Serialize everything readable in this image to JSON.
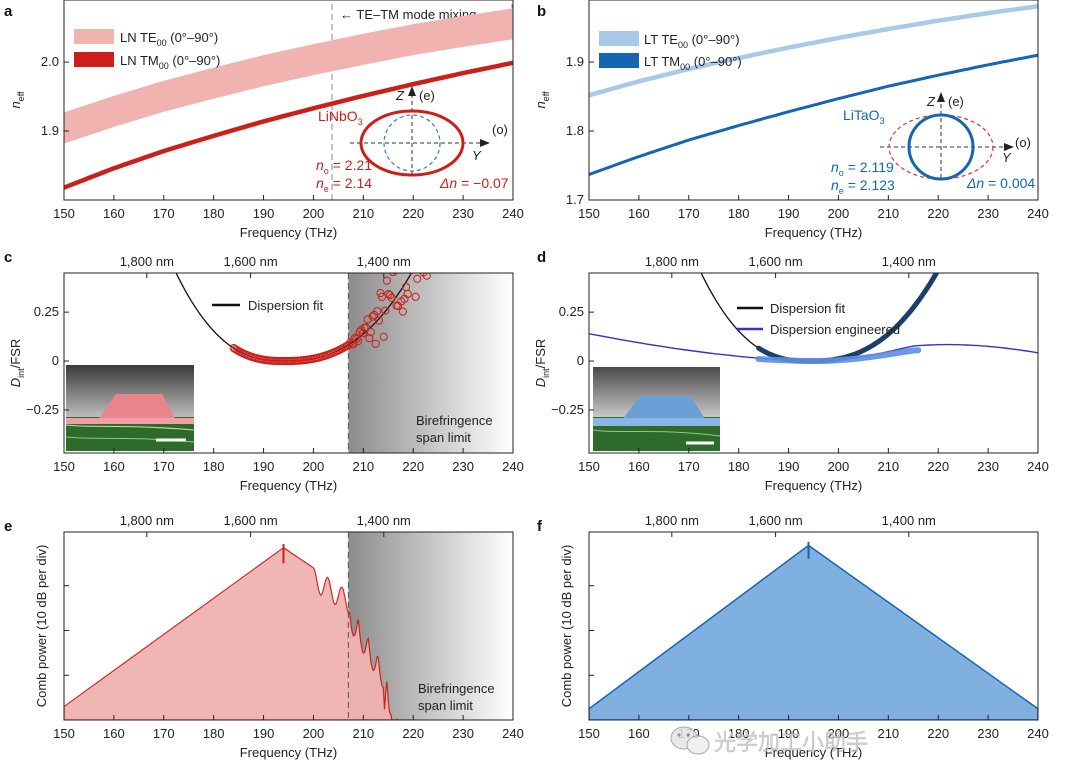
{
  "figure": {
    "watermark": "光学加工小助手",
    "watermark_icon": "wechat-icon",
    "colors": {
      "ln": "#cc1f1a",
      "ln_light": "#f0b3b0",
      "lt": "#1565b5",
      "lt_light": "#a9c9e8",
      "engineered": "#3b2fc9",
      "fit": "#111111",
      "grey_dark": "#8a8a8a"
    }
  },
  "chart_data": [
    {
      "id": "a",
      "type": "line",
      "panel_label": "a",
      "xlabel": "Frequency (THz)",
      "ylabel": "n",
      "ylabel_sub": "eff",
      "xlim": [
        150,
        240
      ],
      "ylim": [
        1.8,
        2.09
      ],
      "xticks": [
        "150",
        "160",
        "170",
        "180",
        "190",
        "200",
        "210",
        "220",
        "230",
        "240"
      ],
      "yticks": [
        {
          "v": 1.9,
          "t": "1.9"
        },
        {
          "v": 2.0,
          "t": "2.0"
        }
      ],
      "series": [
        {
          "name": "LN TE00 (0°–90°)",
          "legend_main": "LN TE",
          "legend_sub": "00",
          "legend_tail": " (0°–90°)",
          "kind": "band",
          "x": [
            150,
            160,
            170,
            180,
            190,
            200,
            210,
            220,
            230,
            240
          ],
          "lower": [
            1.882,
            1.906,
            1.928,
            1.947,
            1.965,
            1.981,
            1.996,
            2.01,
            2.022,
            2.033
          ],
          "upper": [
            1.927,
            1.951,
            1.973,
            1.992,
            2.01,
            2.026,
            2.041,
            2.055,
            2.067,
            2.078
          ]
        },
        {
          "name": "LN TM00 (0°–90°)",
          "legend_main": "LN TM",
          "legend_sub": "00",
          "legend_tail": " (0°–90°)",
          "kind": "line",
          "x": [
            150,
            160,
            170,
            180,
            190,
            200,
            210,
            220,
            230,
            240
          ],
          "y": [
            1.818,
            1.846,
            1.871,
            1.893,
            1.914,
            1.933,
            1.951,
            1.968,
            1.984,
            1.999
          ]
        }
      ],
      "mode_mixing": {
        "x_start": 204.5,
        "label": "TE–TM mode mixing"
      },
      "inset": {
        "material": "LiNbO",
        "material_sub": "3",
        "axis_z": "Z",
        "axis_e": "(e)",
        "axis_y": "Y",
        "axis_o": "(o)",
        "no_label": "n",
        "no_sub": "o",
        "no_value": " = 2.21",
        "ne_label": "n",
        "ne_sub": "e",
        "ne_value": " = 2.14",
        "dn_label": "Δn",
        "dn_value": " = −0.07"
      }
    },
    {
      "id": "b",
      "type": "line",
      "panel_label": "b",
      "xlabel": "Frequency (THz)",
      "ylabel": "n",
      "ylabel_sub": "eff",
      "xlim": [
        150,
        240
      ],
      "ylim": [
        1.7,
        1.99
      ],
      "xticks": [
        "150",
        "160",
        "170",
        "180",
        "190",
        "200",
        "210",
        "220",
        "230",
        "240"
      ],
      "yticks": [
        {
          "v": 1.7,
          "t": "1.7"
        },
        {
          "v": 1.8,
          "t": "1.8"
        },
        {
          "v": 1.9,
          "t": "1.9"
        }
      ],
      "series": [
        {
          "name": "LT TE00 (0°–90°)",
          "legend_main": "LT TE",
          "legend_sub": "00",
          "legend_tail": " (0°–90°)",
          "kind": "line_light",
          "x": [
            150,
            160,
            170,
            180,
            190,
            200,
            210,
            220,
            230,
            240
          ],
          "y": [
            1.852,
            1.872,
            1.89,
            1.906,
            1.921,
            1.935,
            1.948,
            1.96,
            1.971,
            1.981
          ]
        },
        {
          "name": "LT TM00 (0°–90°)",
          "legend_main": "LT TM",
          "legend_sub": "00",
          "legend_tail": " (0°–90°)",
          "kind": "line",
          "x": [
            150,
            160,
            170,
            180,
            190,
            200,
            210,
            220,
            230,
            240
          ],
          "y": [
            1.737,
            1.763,
            1.787,
            1.808,
            1.828,
            1.847,
            1.865,
            1.881,
            1.896,
            1.91
          ]
        }
      ],
      "inset": {
        "material": "LiTaO",
        "material_sub": "3",
        "axis_z": "Z",
        "axis_e": "(e)",
        "axis_y": "Y",
        "axis_o": "(o)",
        "no_label": "n",
        "no_sub": "o",
        "no_value": " = 2.119",
        "ne_label": "n",
        "ne_sub": "e",
        "ne_value": " = 2.123",
        "dn_label": "Δn",
        "dn_value": " = 0.004"
      }
    },
    {
      "id": "c",
      "type": "scatter",
      "panel_label": "c",
      "xlabel": "Frequency (THz)",
      "ylabel": "D",
      "ylabel_sub": "int",
      "ylabel_tail": "/FSR",
      "xlim": [
        150,
        240
      ],
      "ylim": [
        -0.47,
        0.45
      ],
      "xticks": [
        "150",
        "160",
        "170",
        "180",
        "190",
        "200",
        "210",
        "220",
        "230",
        "240"
      ],
      "yticks": [
        {
          "v": 0.25,
          "t": "0.25"
        },
        {
          "v": 0,
          "t": "0"
        },
        {
          "v": -0.25,
          "t": "−0.25"
        }
      ],
      "top_ticks": [
        {
          "v": 166.6,
          "t": "1,800 nm"
        },
        {
          "v": 187.4,
          "t": "1,600 nm"
        },
        {
          "v": 214.1,
          "t": "1,400 nm"
        }
      ],
      "fit": {
        "name": "Dispersion fit",
        "center": 194.0,
        "coeff": 0.000135,
        "exp": 2.5,
        "lin": 0.0
      },
      "points": {
        "x_min": 184,
        "x_mixing": 207,
        "x_max": 238,
        "count": 240,
        "scatter_spread": 0.18
      },
      "grey_region": {
        "x_start": 207,
        "label_lines": [
          "Birefringence",
          "span limit"
        ]
      },
      "sem_inset": {
        "style": "LN waveguide SEM"
      }
    },
    {
      "id": "d",
      "type": "scatter",
      "panel_label": "d",
      "xlabel": "Frequency (THz)",
      "ylabel": "D",
      "ylabel_sub": "int",
      "ylabel_tail": "/FSR",
      "xlim": [
        150,
        240
      ],
      "ylim": [
        -0.47,
        0.45
      ],
      "xticks": [
        "150",
        "160",
        "170",
        "180",
        "190",
        "200",
        "210",
        "220",
        "230",
        "240"
      ],
      "yticks": [
        {
          "v": 0.25,
          "t": "0.25"
        },
        {
          "v": 0,
          "t": "0"
        },
        {
          "v": -0.25,
          "t": "−0.25"
        }
      ],
      "top_ticks": [
        {
          "v": 166.6,
          "t": "1,800 nm"
        },
        {
          "v": 187.4,
          "t": "1,600 nm"
        },
        {
          "v": 214.1,
          "t": "1,400 nm"
        }
      ],
      "fit": {
        "name": "Dispersion fit",
        "center": 194.0,
        "coeff": 0.000135,
        "exp": 2.5,
        "lin": 0.0
      },
      "engineered": {
        "name": "Dispersion engineered",
        "amp": 0.14
      },
      "points": {
        "x_min": 184,
        "x_max": 238
      },
      "eng_points": {
        "x_min": 184,
        "x_max": 216
      },
      "sem_inset": {
        "style": "LT waveguide SEM"
      }
    },
    {
      "id": "e",
      "type": "area",
      "panel_label": "e",
      "xlabel": "Frequency (THz)",
      "ylabel": "Comb power (10 dB per div)",
      "xlim": [
        150,
        240
      ],
      "ylim": [
        0,
        4.2
      ],
      "xticks": [
        "150",
        "160",
        "170",
        "180",
        "190",
        "200",
        "210",
        "220",
        "230",
        "240"
      ],
      "top_ticks": [
        {
          "v": 166.6,
          "t": "1,800 nm"
        },
        {
          "v": 187.4,
          "t": "1,600 nm"
        },
        {
          "v": 214.1,
          "t": "1,400 nm"
        }
      ],
      "peak": {
        "x": 194.0,
        "y": 3.85
      },
      "left_base": {
        "x": 150,
        "y": 0.3
      },
      "cutoff": {
        "x": 220.5
      },
      "grey_region": {
        "x_start": 207,
        "label_lines": [
          "Birefringence",
          "span limit"
        ]
      }
    },
    {
      "id": "f",
      "type": "area",
      "panel_label": "f",
      "xlabel": "Frequency (THz)",
      "ylabel": "Comb power (10 dB per div)",
      "xlim": [
        150,
        240
      ],
      "ylim": [
        0,
        4.2
      ],
      "xticks": [
        "150",
        "160",
        "170",
        "180",
        "190",
        "200",
        "210",
        "220",
        "230",
        "240"
      ],
      "top_ticks": [
        {
          "v": 166.6,
          "t": "1,800 nm"
        },
        {
          "v": 187.4,
          "t": "1,600 nm"
        },
        {
          "v": 214.1,
          "t": "1,400 nm"
        }
      ],
      "peak": {
        "x": 194.0,
        "y": 3.9
      },
      "left_base": {
        "x": 150,
        "y": 0.25
      },
      "right_base": {
        "x": 240,
        "y": 0.25
      }
    }
  ]
}
